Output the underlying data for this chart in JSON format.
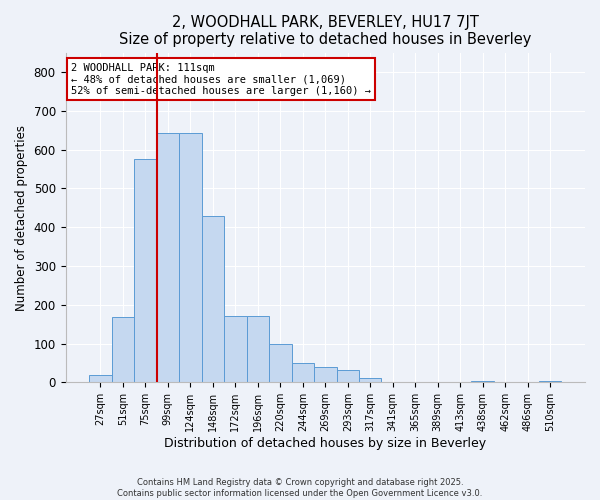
{
  "title": "2, WOODHALL PARK, BEVERLEY, HU17 7JT",
  "subtitle": "Size of property relative to detached houses in Beverley",
  "xlabel": "Distribution of detached houses by size in Beverley",
  "ylabel": "Number of detached properties",
  "bar_labels": [
    "27sqm",
    "51sqm",
    "75sqm",
    "99sqm",
    "124sqm",
    "148sqm",
    "172sqm",
    "196sqm",
    "220sqm",
    "244sqm",
    "269sqm",
    "293sqm",
    "317sqm",
    "341sqm",
    "365sqm",
    "389sqm",
    "413sqm",
    "438sqm",
    "462sqm",
    "486sqm",
    "510sqm"
  ],
  "bar_values": [
    18,
    168,
    575,
    643,
    643,
    430,
    170,
    170,
    100,
    50,
    40,
    33,
    12,
    0,
    0,
    0,
    0,
    3,
    0,
    0,
    3
  ],
  "bar_color": "#c5d8f0",
  "bar_edge_color": "#5b9bd5",
  "background_color": "#eef2f9",
  "grid_color": "#ffffff",
  "vline_position": 2.5,
  "vline_color": "#cc0000",
  "annotation_text": "2 WOODHALL PARK: 111sqm\n← 48% of detached houses are smaller (1,069)\n52% of semi-detached houses are larger (1,160) →",
  "annotation_box_edge_color": "#cc0000",
  "ylim": [
    0,
    850
  ],
  "yticks": [
    0,
    100,
    200,
    300,
    400,
    500,
    600,
    700,
    800
  ],
  "footer_line1": "Contains HM Land Registry data © Crown copyright and database right 2025.",
  "footer_line2": "Contains public sector information licensed under the Open Government Licence v3.0.",
  "figsize": [
    6.0,
    5.0
  ],
  "dpi": 100
}
